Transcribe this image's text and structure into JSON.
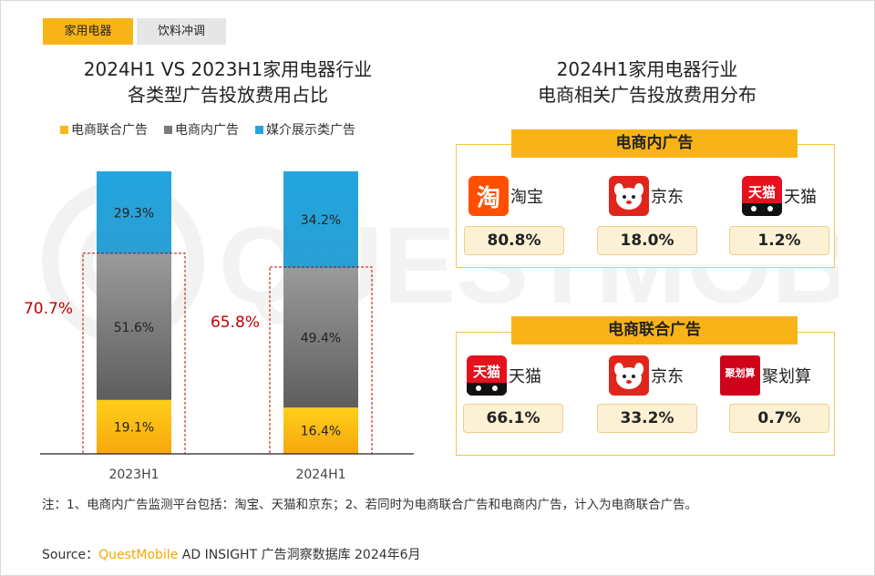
{
  "tabs": [
    {
      "label": "家用电器",
      "active": true
    },
    {
      "label": "饮料冲调",
      "active": false
    }
  ],
  "left_title": {
    "line1": "2024H1 VS 2023H1家用电器行业",
    "line2": "各类型广告投放费用占比"
  },
  "right_title": {
    "line1": "2024H1家用电器行业",
    "line2": "电商相关广告投放费用分布"
  },
  "chart_data": {
    "type": "bar",
    "stacked": true,
    "categories": [
      "2023H1",
      "2024H1"
    ],
    "series": [
      {
        "name": "电商联合广告",
        "values": [
          19.1,
          16.4
        ],
        "labels": [
          "19.1%",
          "16.4%"
        ],
        "color": "#fcb814"
      },
      {
        "name": "电商内广告",
        "values": [
          51.6,
          49.4
        ],
        "labels": [
          "51.6%",
          "49.4%"
        ],
        "color": "#7a7a7a"
      },
      {
        "name": "媒介展示类广告",
        "values": [
          29.3,
          34.2
        ],
        "labels": [
          "29.3%",
          "34.2%"
        ],
        "color": "#25a4dc"
      }
    ],
    "combined_labels": [
      "70.7%",
      "65.8%"
    ],
    "ylim": [
      0,
      100
    ],
    "legend_position": "top",
    "grid": false
  },
  "panels": [
    {
      "title": "电商内广告",
      "brands": [
        {
          "name": "淘宝",
          "value": "80.8%",
          "icon": "taobao-logo-icon",
          "logo_text": "淘",
          "color": "#ff5000"
        },
        {
          "name": "京东",
          "value": "18.0%",
          "icon": "jd-dog-logo-icon",
          "logo_text": "",
          "color": "#e1251b"
        },
        {
          "name": "天猫",
          "value": "1.2%",
          "icon": "tmall-cat-logo-icon",
          "logo_text": "天猫",
          "color": "#e5121e"
        }
      ]
    },
    {
      "title": "电商联合广告",
      "brands": [
        {
          "name": "天猫",
          "value": "66.1%",
          "icon": "tmall-cat-logo-icon",
          "logo_text": "天猫",
          "color": "#e5121e"
        },
        {
          "name": "京东",
          "value": "33.2%",
          "icon": "jd-dog-logo-icon",
          "logo_text": "",
          "color": "#e1251b"
        },
        {
          "name": "聚划算",
          "value": "0.7%",
          "icon": "juhuasuan-logo-icon",
          "logo_text": "聚划算",
          "color": "#d0021b"
        }
      ]
    }
  ],
  "note": "注：1、电商内广告监测平台包括：淘宝、天猫和京东；2、若同时为电商联合广告和电商内广告，计入为电商联合广告。",
  "source": {
    "prefix": "Source：",
    "brand": "QuestMobile",
    "suffix": " AD INSIGHT 广告洞察数据库 2024年6月"
  },
  "watermark": "QUESTMOBILE"
}
